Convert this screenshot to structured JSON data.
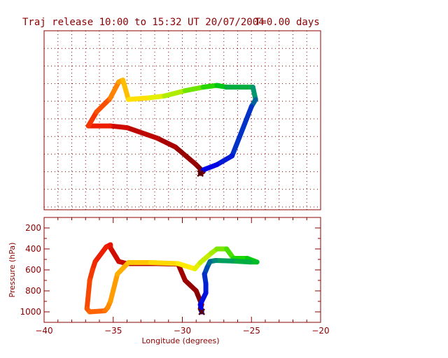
{
  "title": "Traj release 10:00 to 15:32 UT 20/07/2004",
  "time_label": "T=0.00 days",
  "colors": {
    "frame": "#8b0000",
    "grid": "#8b0000",
    "text": "#8b0000",
    "background": "#ffffff"
  },
  "chart_data": [
    {
      "type": "line",
      "panel": "map",
      "grid": true,
      "xlim": [
        -40,
        -20
      ],
      "series": [
        {
          "points": [
            [
              -28.7,
              -3.1
            ],
            [
              -28.5,
              -3.0
            ],
            [
              -29.0,
              -2.6
            ],
            [
              -30.5,
              -1.6
            ],
            [
              -31.8,
              -1.1
            ],
            [
              -34.0,
              -0.5
            ],
            [
              -35.2,
              -0.4
            ],
            [
              -35.3,
              -0.4
            ],
            [
              -36.8,
              -0.4
            ],
            [
              -36.2,
              0.4
            ],
            [
              -35.3,
              1.1
            ],
            [
              -35.2,
              1.2
            ],
            [
              -34.6,
              2.1
            ],
            [
              -34.3,
              2.2
            ],
            [
              -33.9,
              1.1
            ],
            [
              -32.3,
              1.2
            ],
            [
              -31.3,
              1.3
            ],
            [
              -29.8,
              1.6
            ],
            [
              -28.5,
              1.8
            ],
            [
              -27.5,
              1.9
            ],
            [
              -26.8,
              1.8
            ],
            [
              -24.9,
              1.8
            ],
            [
              -24.7,
              1.1
            ],
            [
              -25.0,
              0.7
            ],
            [
              -26.4,
              -2.1
            ],
            [
              -27.5,
              -2.6
            ],
            [
              -28.5,
              -2.9
            ]
          ]
        }
      ]
    },
    {
      "type": "line",
      "panel": "vertical",
      "grid": false,
      "xlabel": "Longitude  (degrees)",
      "ylabel": "Pressure  (hPa)",
      "xlim": [
        -40,
        -20
      ],
      "xticks": [
        -40,
        -35,
        -30,
        -25,
        -20
      ],
      "ylim": [
        1100,
        100
      ],
      "yticks": [
        200,
        400,
        600,
        800,
        1000
      ],
      "series": [
        {
          "points": [
            [
              -28.6,
              1000
            ],
            [
              -28.7,
              970
            ],
            [
              -28.6,
              930
            ],
            [
              -29.0,
              800
            ],
            [
              -29.8,
              700
            ],
            [
              -30.3,
              545
            ],
            [
              -31.8,
              540
            ],
            [
              -34.0,
              540
            ],
            [
              -34.6,
              520
            ],
            [
              -35.2,
              390
            ],
            [
              -35.2,
              360
            ],
            [
              -35.5,
              380
            ],
            [
              -36.3,
              520
            ],
            [
              -36.5,
              600
            ],
            [
              -36.7,
              700
            ],
            [
              -36.9,
              970
            ],
            [
              -36.7,
              1000
            ],
            [
              -35.6,
              990
            ],
            [
              -35.4,
              960
            ],
            [
              -35.2,
              900
            ],
            [
              -34.7,
              640
            ],
            [
              -33.9,
              530
            ],
            [
              -32.3,
              530
            ],
            [
              -30.3,
              540
            ],
            [
              -29.1,
              590
            ],
            [
              -28.7,
              530
            ],
            [
              -27.9,
              440
            ],
            [
              -27.5,
              400
            ],
            [
              -26.8,
              400
            ],
            [
              -26.3,
              490
            ],
            [
              -25.3,
              490
            ],
            [
              -24.6,
              525
            ],
            [
              -25.1,
              525
            ],
            [
              -26.4,
              515
            ],
            [
              -27.6,
              510
            ],
            [
              -28.0,
              520
            ],
            [
              -28.2,
              575
            ],
            [
              -28.4,
              640
            ],
            [
              -28.3,
              730
            ],
            [
              -28.3,
              820
            ],
            [
              -28.7,
              930
            ],
            [
              -28.6,
              1000
            ]
          ]
        }
      ]
    }
  ]
}
